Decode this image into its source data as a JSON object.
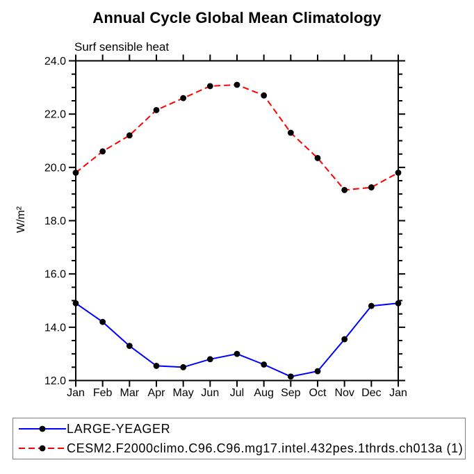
{
  "chart_data": {
    "type": "line",
    "title": "Annual Cycle Global Mean Climatology",
    "subtitle": "Surf sensible heat",
    "ylabel": "W/m²",
    "xlabel": "",
    "categories": [
      "Jan",
      "Feb",
      "Mar",
      "Apr",
      "May",
      "Jun",
      "Jul",
      "Aug",
      "Sep",
      "Oct",
      "Nov",
      "Dec",
      "Jan"
    ],
    "ylim": [
      12.0,
      24.0
    ],
    "ytick_step": 2.0,
    "yminor_step": 0.5,
    "ytick_labels": [
      "12.0",
      "14.0",
      "16.0",
      "18.0",
      "20.0",
      "22.0",
      "24.0"
    ],
    "grid": false,
    "legend_position": "bottom",
    "marker": {
      "shape": "circle",
      "color": "#000000"
    },
    "axis_color": "#000000",
    "series": [
      {
        "name": "LARGE-YEAGER",
        "color": "#0000ff",
        "line_style": "solid",
        "values": [
          14.9,
          14.2,
          13.3,
          12.55,
          12.5,
          12.8,
          13.0,
          12.6,
          12.15,
          12.35,
          13.55,
          14.8,
          14.9
        ]
      },
      {
        "name": "CESM2.F2000climo.C96.C96.mg17.intel.432pes.1thrds.ch013a (1)",
        "color": "#ff0000",
        "line_style": "dashed",
        "values": [
          19.8,
          20.6,
          21.2,
          22.15,
          22.6,
          23.05,
          23.1,
          22.7,
          21.3,
          20.35,
          19.15,
          19.25,
          19.8
        ]
      }
    ]
  }
}
